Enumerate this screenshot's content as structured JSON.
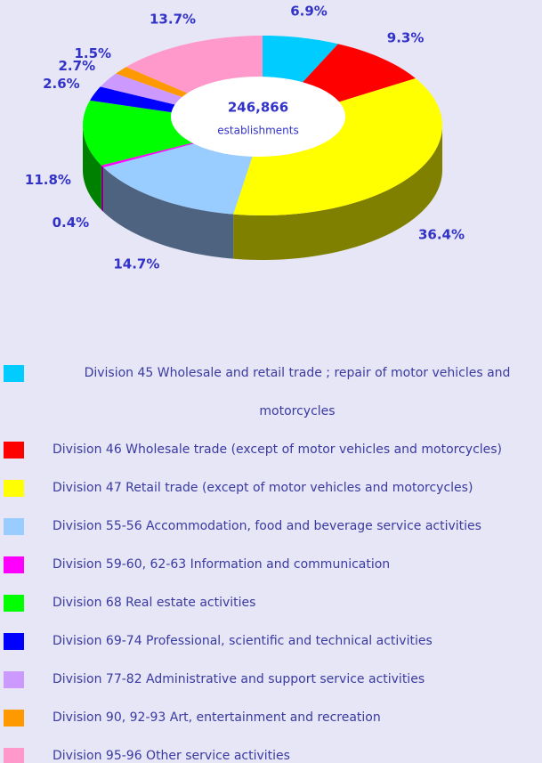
{
  "chart_data": {
    "type": "pie",
    "center_label": "246,866",
    "center_sublabel": "establishments",
    "categories": [
      "Division 45 Wholesale and retail trade ; repair of motor vehicles and motorcycles",
      "Division 46 Wholesale trade (except of motor vehicles and motorcycles)",
      "Division 47 Retail trade (except of motor vehicles and motorcycles)",
      "Division 55-56 Accommodation, food and beverage service activities",
      "Division 59-60, 62-63 Information and communication",
      "Division 68 Real estate activities",
      "Division 69-74 Professional, scientific and technical activities",
      "Division 77-82 Administrative and support service activities",
      "Division 90, 92-93 Art, entertainment and recreation",
      "Division 95-96 Other service activities"
    ],
    "values": [
      6.9,
      9.3,
      36.4,
      14.7,
      0.4,
      11.8,
      2.6,
      2.7,
      1.5,
      13.7
    ],
    "value_labels": [
      "6.9%",
      "9.3%",
      "36.4%",
      "14.7%",
      "0.4%",
      "11.8%",
      "2.6%",
      "2.7%",
      "1.5%",
      "13.7%"
    ],
    "colors": [
      "#00ccff",
      "#ff0000",
      "#ffff00",
      "#99ccff",
      "#ff00ff",
      "#00ff00",
      "#0000ff",
      "#cc99ff",
      "#ff9900",
      "#ff99cc"
    ],
    "side_colors": [
      "#007a99",
      "#990000",
      "#808000",
      "#4d6380",
      "#800080",
      "#008000",
      "#000080",
      "#665080",
      "#804d00",
      "#804d66"
    ]
  }
}
